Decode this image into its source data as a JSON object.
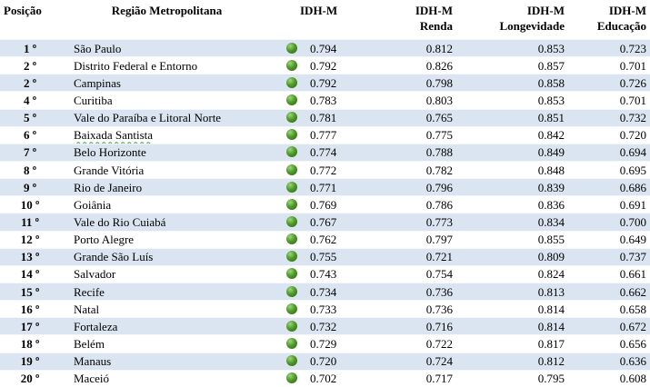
{
  "headers": {
    "position": "Posição",
    "region": "Região Metropolitana",
    "idh_m": "IDH-M",
    "income": [
      "IDH-M",
      "Renda"
    ],
    "longevity": [
      "IDH-M",
      "Longevidade"
    ],
    "education": [
      "IDH-M",
      "Educação"
    ]
  },
  "indicator_icon": "green-circle-icon",
  "colors": {
    "stripe": "#dbe5f1",
    "indicator": "#4f9a2a"
  },
  "rows": [
    {
      "pos": "1 º",
      "region": "São Paulo",
      "idh": "0.794",
      "renda": "0.812",
      "longevidade": "0.853",
      "educacao": "0.723"
    },
    {
      "pos": "2 º",
      "region": "Distrito Federal e Entorno",
      "idh": "0.792",
      "renda": "0.826",
      "longevidade": "0.857",
      "educacao": "0.701"
    },
    {
      "pos": "2 º",
      "region": "Campinas",
      "idh": "0.792",
      "renda": "0.798",
      "longevidade": "0.858",
      "educacao": "0.726"
    },
    {
      "pos": "4 º",
      "region": "Curitiba",
      "idh": "0.783",
      "renda": "0.803",
      "longevidade": "0.853",
      "educacao": "0.701"
    },
    {
      "pos": "5 º",
      "region": "Vale do Paraíba e Litoral Norte",
      "idh": "0.781",
      "renda": "0.765",
      "longevidade": "0.851",
      "educacao": "0.732"
    },
    {
      "pos": "6 º",
      "region": "Baixada Santista",
      "idh": "0.777",
      "renda": "0.775",
      "longevidade": "0.842",
      "educacao": "0.720"
    },
    {
      "pos": "7 º",
      "region": "Belo Horizonte",
      "idh": "0.774",
      "renda": "0.788",
      "longevidade": "0.849",
      "educacao": "0.694"
    },
    {
      "pos": "8 º",
      "region": "Grande Vitória",
      "idh": "0.772",
      "renda": "0.782",
      "longevidade": "0.848",
      "educacao": "0.695"
    },
    {
      "pos": "9 º",
      "region": "Rio de Janeiro",
      "idh": "0.771",
      "renda": "0.796",
      "longevidade": "0.839",
      "educacao": "0.686"
    },
    {
      "pos": "10 º",
      "region": "Goiânia",
      "idh": "0.769",
      "renda": "0.786",
      "longevidade": "0.836",
      "educacao": "0.691"
    },
    {
      "pos": "11 º",
      "region": "Vale do Rio Cuiabá",
      "idh": "0.767",
      "renda": "0.773",
      "longevidade": "0.834",
      "educacao": "0.700"
    },
    {
      "pos": "12 º",
      "region": "Porto Alegre",
      "idh": "0.762",
      "renda": "0.797",
      "longevidade": "0.855",
      "educacao": "0.649"
    },
    {
      "pos": "13 º",
      "region": "Grande São Luís",
      "idh": "0.755",
      "renda": "0.721",
      "longevidade": "0.809",
      "educacao": "0.737"
    },
    {
      "pos": "14 º",
      "region": "Salvador",
      "idh": "0.743",
      "renda": "0.754",
      "longevidade": "0.824",
      "educacao": "0.661"
    },
    {
      "pos": "15 º",
      "region": "Recife",
      "idh": "0.734",
      "renda": "0.736",
      "longevidade": "0.813",
      "educacao": "0.662"
    },
    {
      "pos": "16 º",
      "region": "Natal",
      "idh": "0.733",
      "renda": "0.736",
      "longevidade": "0.814",
      "educacao": "0.658"
    },
    {
      "pos": "17 º",
      "region": "Fortaleza",
      "idh": "0.732",
      "renda": "0.716",
      "longevidade": "0.814",
      "educacao": "0.672"
    },
    {
      "pos": "18 º",
      "region": "Belém",
      "idh": "0.729",
      "renda": "0.722",
      "longevidade": "0.817",
      "educacao": "0.656"
    },
    {
      "pos": "19 º",
      "region": "Manaus",
      "idh": "0.720",
      "renda": "0.724",
      "longevidade": "0.812",
      "educacao": "0.636"
    },
    {
      "pos": "20 º",
      "region": "Maceió",
      "idh": "0.702",
      "renda": "0.717",
      "longevidade": "0.795",
      "educacao": "0.608"
    }
  ]
}
